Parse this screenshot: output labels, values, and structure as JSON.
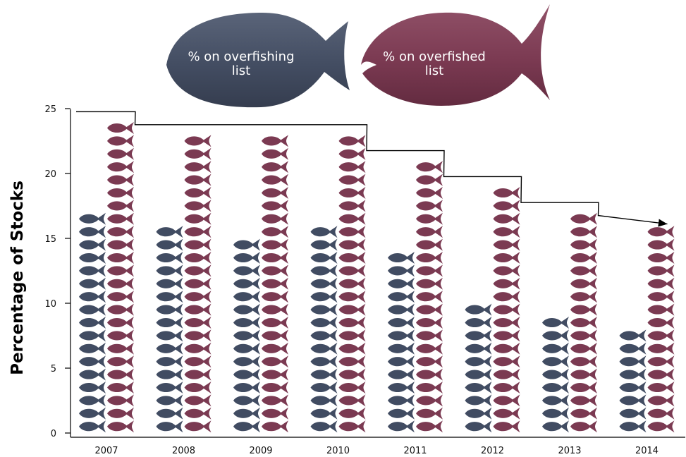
{
  "chart_data": {
    "type": "bar",
    "categories": [
      "2007",
      "2008",
      "2009",
      "2010",
      "2011",
      "2012",
      "2013",
      "2014"
    ],
    "series": [
      {
        "name": "% on overfishing list",
        "values": [
          17,
          16,
          15,
          16,
          14,
          10,
          9,
          8
        ]
      },
      {
        "name": "% on overfished list",
        "values": [
          24,
          23,
          23,
          23,
          21,
          19,
          17,
          16
        ]
      }
    ],
    "title": "",
    "xlabel": "",
    "ylabel": "Percentage of Stocks",
    "ylim": [
      0,
      25
    ],
    "yticks": [
      "0",
      "5",
      "10",
      "15",
      "20",
      "25"
    ],
    "grid": false,
    "legend_placement": "top-center",
    "trend_line": "overfished list decline with arrow",
    "colors": {
      "overfishing": "#414c62",
      "overfished": "#7b3a52",
      "ylabel": "#1f6a9c",
      "axis": "#000000"
    },
    "icon": "fish-icon"
  },
  "legend": {
    "overfishing_line1": "% on overfishing",
    "overfishing_line2": "list",
    "overfished_line1": "% on overfished",
    "overfished_line2": "list"
  }
}
